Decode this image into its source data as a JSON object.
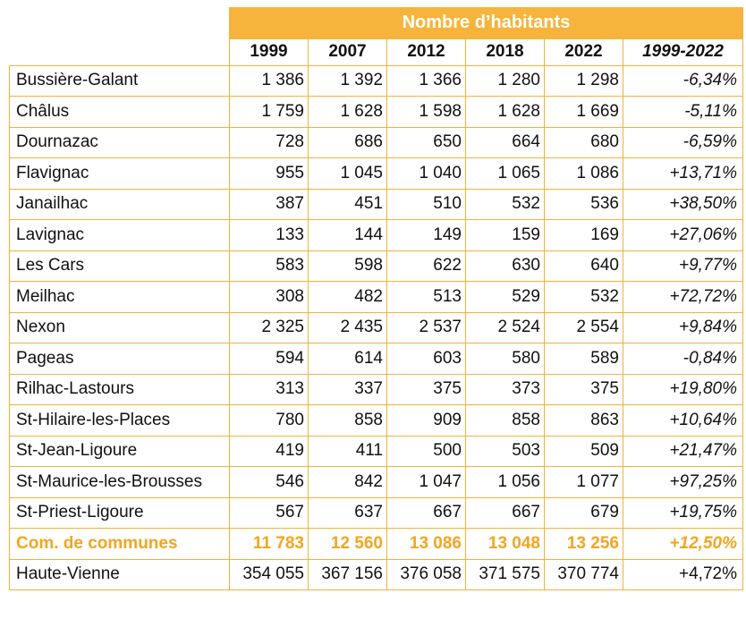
{
  "header": {
    "title": "Nombre d’habitants",
    "years": [
      "1999",
      "2007",
      "2012",
      "2018",
      "2022",
      "1999-2022"
    ]
  },
  "rows": [
    {
      "name": "Bussière-Galant",
      "values": [
        "1 386",
        "1 392",
        "1 366",
        "1 280",
        "1 298"
      ],
      "change": "-6,34%"
    },
    {
      "name": "Châlus",
      "values": [
        "1 759",
        "1 628",
        "1 598",
        "1 628",
        "1 669"
      ],
      "change": "-5,11%"
    },
    {
      "name": "Dournazac",
      "values": [
        "728",
        "686",
        "650",
        "664",
        "680"
      ],
      "change": "-6,59%"
    },
    {
      "name": "Flavignac",
      "values": [
        "955",
        "1 045",
        "1 040",
        "1 065",
        "1 086"
      ],
      "change": "+13,71%"
    },
    {
      "name": "Janailhac",
      "values": [
        "387",
        "451",
        "510",
        "532",
        "536"
      ],
      "change": "+38,50%"
    },
    {
      "name": "Lavignac",
      "values": [
        "133",
        "144",
        "149",
        "159",
        "169"
      ],
      "change": "+27,06%"
    },
    {
      "name": "Les Cars",
      "values": [
        "583",
        "598",
        "622",
        "630",
        "640"
      ],
      "change": "+9,77%"
    },
    {
      "name": "Meilhac",
      "values": [
        "308",
        "482",
        "513",
        "529",
        "532"
      ],
      "change": "+72,72%"
    },
    {
      "name": "Nexon",
      "values": [
        "2 325",
        "2 435",
        "2 537",
        "2 524",
        "2 554"
      ],
      "change": "+9,84%"
    },
    {
      "name": "Pageas",
      "values": [
        "594",
        "614",
        "603",
        "580",
        "589"
      ],
      "change": "-0,84%"
    },
    {
      "name": "Rilhac-Lastours",
      "values": [
        "313",
        "337",
        "375",
        "373",
        "375"
      ],
      "change": "+19,80%"
    },
    {
      "name": "St-Hilaire-les-Places",
      "values": [
        "780",
        "858",
        "909",
        "858",
        "863"
      ],
      "change": "+10,64%"
    },
    {
      "name": "St-Jean-Ligoure",
      "values": [
        "419",
        "411",
        "500",
        "503",
        "509"
      ],
      "change": "+21,47%"
    },
    {
      "name": "St-Maurice-les-Brousses",
      "values": [
        "546",
        "842",
        "1 047",
        "1 056",
        "1 077"
      ],
      "change": "+97,25%"
    },
    {
      "name": "St-Priest-Ligoure",
      "values": [
        "567",
        "637",
        "667",
        "667",
        "679"
      ],
      "change": "+19,75%"
    }
  ],
  "total": {
    "name": "Com. de communes",
    "values": [
      "11 783",
      "12 560",
      "13 086",
      "13 048",
      "13 256"
    ],
    "change": "+12,50%"
  },
  "department": {
    "name": "Haute-Vienne",
    "values": [
      "354 055",
      "367 156",
      "376 058",
      "371 575",
      "370 774"
    ],
    "change": "+4,72%"
  },
  "colors": {
    "accent": "#f6b43c",
    "border": "#f2b23a",
    "total_text": "#f2a61e"
  }
}
